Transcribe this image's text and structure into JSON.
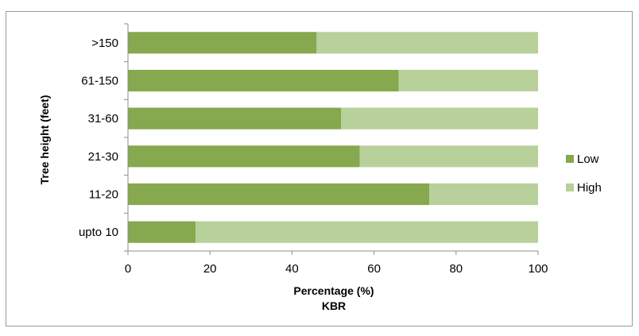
{
  "chart_data": {
    "type": "bar",
    "orientation": "horizontal",
    "stacked": true,
    "categories": [
      ">150",
      "61-150",
      "31-60",
      "21-30",
      "11-20",
      "upto 10"
    ],
    "series": [
      {
        "name": "Low",
        "color": "#86A84E",
        "values": [
          46,
          66,
          52,
          56.5,
          73.5,
          16.5
        ]
      },
      {
        "name": "High",
        "color": "#B8D09A",
        "values": [
          54,
          34,
          48,
          43.5,
          26.5,
          83.5
        ]
      }
    ],
    "xlabel": "Percentage (%)",
    "xlabel2": "KBR",
    "ylabel": "Tree height (feet)",
    "xlim": [
      0,
      100
    ],
    "xticks": [
      "0",
      "20",
      "40",
      "60",
      "80",
      "100"
    ],
    "grid": false,
    "legend_position": "right"
  }
}
